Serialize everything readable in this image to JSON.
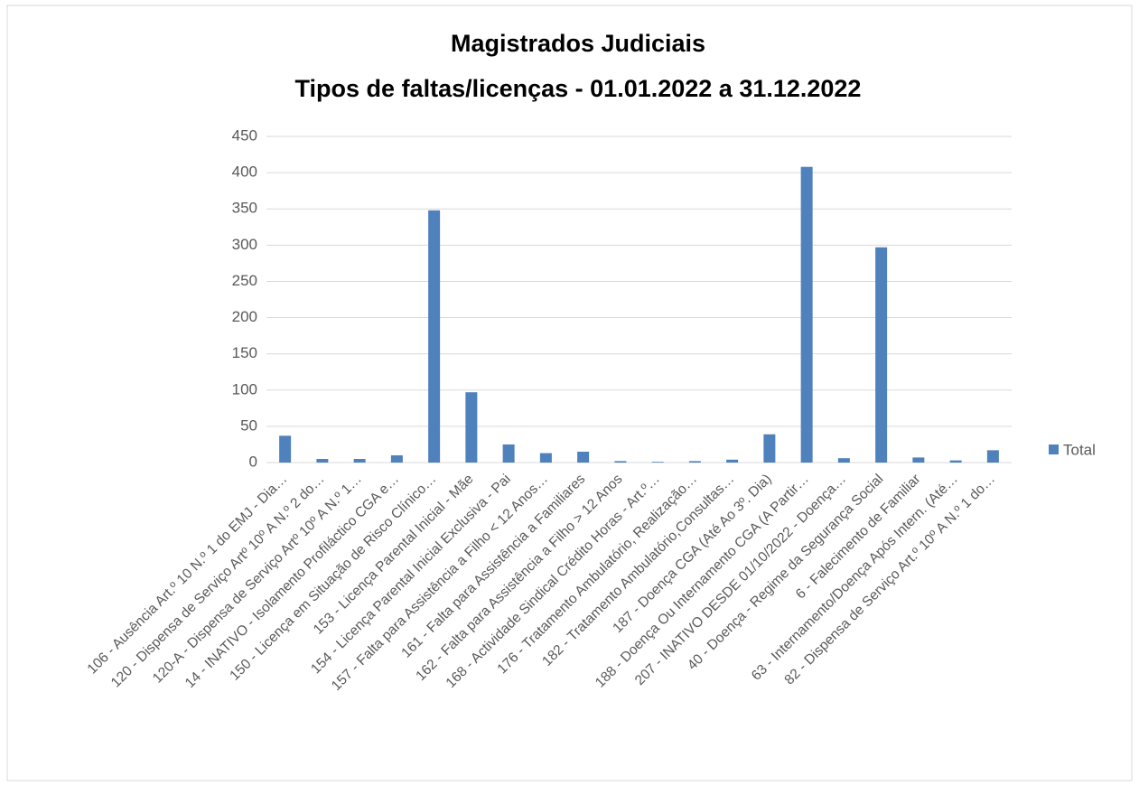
{
  "chart_data": {
    "type": "bar",
    "title": "Magistrados Judiciais",
    "subtitle": "Tipos de faltas/licenças - 01.01.2022 a 31.12.2022",
    "categories": [
      "106 - Ausência Art.º 10 N.º 1 do EMJ - Dia…",
      "120 - Dispensa de Serviço Artº 10º A N.º 2 do…",
      "120-A - Dispensa de Serviço Artº 10º A N.º 1…",
      "14 - INATIVO - Isolamento Profiláctico CGA e…",
      "150 - Licença em Situação de Risco Clínico…",
      "153 - Licença Parental Inicial - Mãe",
      "154 - Licença Parental Inicial Exclusiva - Pai",
      "157 - Falta para Assistência a Filho < 12 Anos…",
      "161 - Falta para Assistência a Familiares",
      "162 - Falta para Assistência a Filho > 12 Anos",
      "168 - Actividade Sindical Crédito Horas - Art.º…",
      "176 - Tratamento Ambulatório, Realização…",
      "182 - Tratamento Ambulatório,Consultas…",
      "187 - Doença CGA (Até Ao 3º. Dia)",
      "188 - Doença Ou Internamento CGA (A Partir…",
      "207 - INATIVO DESDE 01/10/2022 - Doença…",
      "40 - Doença - Regime da Segurança Social",
      "6 - Falecimento de Familiar",
      "63 - Internamento/Doença Após Intern. (Até…",
      "82 - Dispensa de Serviço Art.º 10º A N.º 1 do…"
    ],
    "series": [
      {
        "name": "Total",
        "color": "#4f81bd",
        "values": [
          37,
          5,
          5,
          10,
          348,
          97,
          25,
          13,
          15,
          2,
          1,
          2,
          4,
          39,
          408,
          6,
          297,
          7,
          3,
          17
        ]
      }
    ],
    "ylim": [
      0,
      450
    ],
    "yticks": [
      0,
      50,
      100,
      150,
      200,
      250,
      300,
      350,
      400,
      450
    ],
    "grid": true,
    "legend": "right"
  }
}
